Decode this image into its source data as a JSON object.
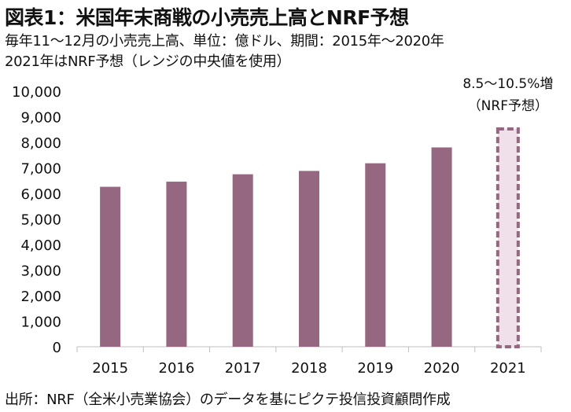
{
  "title": "図表1：米国年末商戦の小売売上高とNRF予想",
  "subtitle_line1": "毎年11～12月の小売売上高、単位：億ドル、期間：2015年～2020年",
  "subtitle_line2": "2021年はNRF予想（レンジの中央値を使用）",
  "source": "出所：NRF（全米小売業協会）のデータを基にピクテ投信投資顧問作成",
  "colors": {
    "bar": "#956781",
    "forecast_fill": "#f0e0ea",
    "forecast_border": "#956781"
  },
  "chart_data": {
    "type": "bar",
    "categories": [
      "2015",
      "2016",
      "2017",
      "2018",
      "2019",
      "2020",
      "2021"
    ],
    "values": [
      6260,
      6460,
      6750,
      6880,
      7180,
      7800,
      8525
    ],
    "forecast_index": 6,
    "ylim": [
      0,
      10000
    ],
    "yticks": [
      0,
      1000,
      2000,
      3000,
      4000,
      5000,
      6000,
      7000,
      8000,
      9000,
      10000
    ],
    "ytick_labels": [
      "0",
      "1,000",
      "2,000",
      "3,000",
      "4,000",
      "5,000",
      "6,000",
      "7,000",
      "8,000",
      "9,000",
      "10,000"
    ],
    "annotation_line1": "8.5～10.5%増",
    "annotation_line2": "（NRF予想）",
    "grid": false
  }
}
